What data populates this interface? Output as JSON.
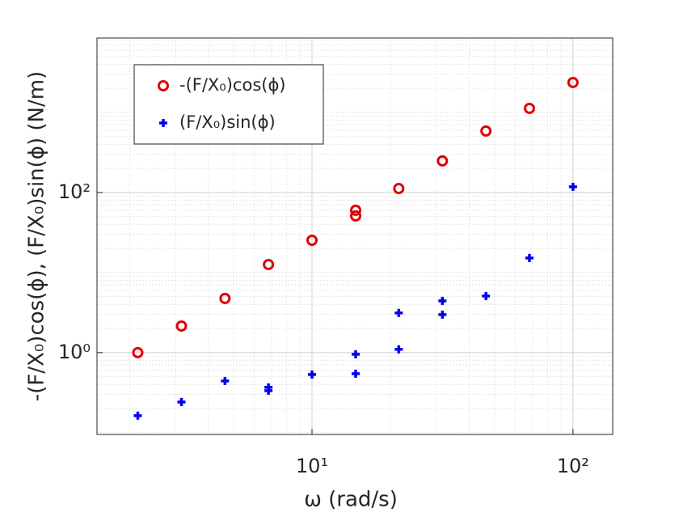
{
  "chart_data": {
    "type": "scatter",
    "xlabel": "ω (rad/s)",
    "ylabel": "-(F/X₀)cos(ϕ), (F/X₀)sin(ϕ) (N/m)",
    "log_x": true,
    "log_y": true,
    "grid": true,
    "legend": "upper left",
    "xlim": [
      1.5,
      142
    ],
    "ylim": [
      0.095,
      8500
    ],
    "xticks": [
      {
        "value": 10,
        "label": "10¹"
      },
      {
        "value": 100,
        "label": "10²"
      }
    ],
    "yticks": [
      {
        "value": 1,
        "label": "10⁰"
      },
      {
        "value": 100,
        "label": "10²"
      }
    ],
    "series": [
      {
        "name": "-(F/X₀)cos(ϕ)",
        "color": "#e00000",
        "marker": "circle",
        "x": [
          2.15,
          3.16,
          4.64,
          6.81,
          10,
          14.7,
          14.7,
          21.5,
          31.6,
          46.4,
          68.1,
          100
        ],
        "values": [
          1.0,
          2.15,
          4.75,
          12.6,
          25.3,
          60,
          51,
          112,
          248,
          586,
          1124,
          2366
        ]
      },
      {
        "name": "(F/X₀)sin(ϕ)",
        "color": "#0000ee",
        "marker": "plus",
        "x": [
          2.15,
          3.16,
          4.64,
          6.81,
          6.81,
          10,
          14.7,
          14.7,
          21.5,
          21.5,
          31.6,
          31.6,
          46.4,
          68.1,
          100
        ],
        "values": [
          0.163,
          0.242,
          0.443,
          0.368,
          0.335,
          0.533,
          0.955,
          0.546,
          3.13,
          1.1,
          4.43,
          2.98,
          5.1,
          15.2,
          118
        ]
      }
    ]
  }
}
